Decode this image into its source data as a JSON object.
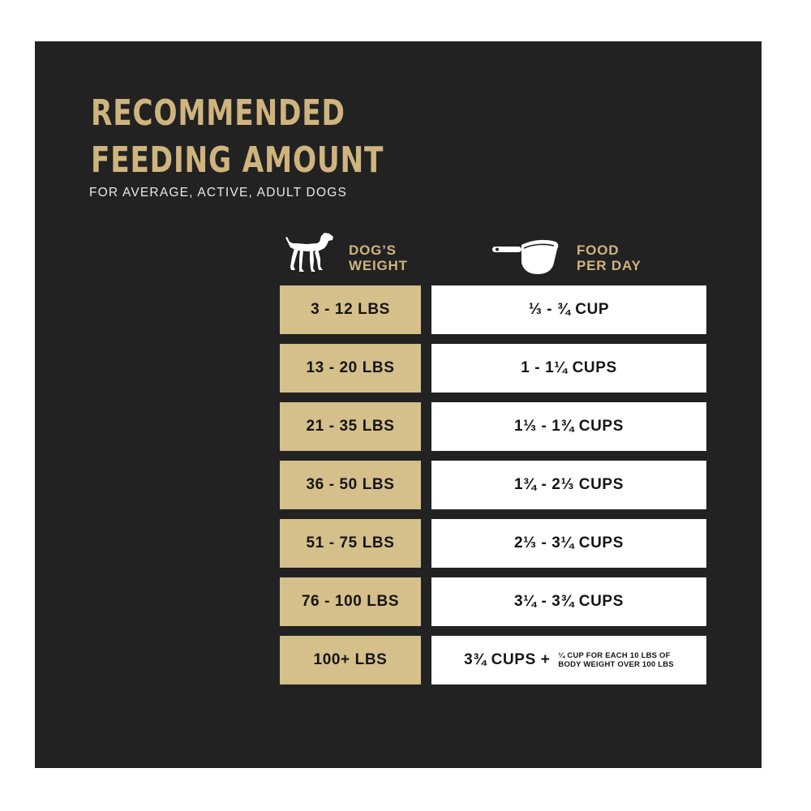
{
  "title": {
    "line1": "RECOMMENDED",
    "line2": "FEEDING AMOUNT"
  },
  "subtitle": "FOR AVERAGE, ACTIVE, ADULT DOGS",
  "columns": {
    "weight_line1": "DOG’S",
    "weight_line2": "WEIGHT",
    "food_line1": "FOOD",
    "food_line2": "PER DAY",
    "weight_icon": "dog-icon",
    "food_icon": "measuring-cup-icon"
  },
  "rows": [
    {
      "weight": "3 - 12 LBS",
      "food": "⅓ - ¾ CUP"
    },
    {
      "weight": "13 - 20 LBS",
      "food": "1 - 1¼ CUPS"
    },
    {
      "weight": "21 - 35 LBS",
      "food": "1⅓ - 1¾ CUPS"
    },
    {
      "weight": "36 - 50 LBS",
      "food": "1¾ - 2⅓ CUPS"
    },
    {
      "weight": "51 - 75 LBS",
      "food": "2⅓ - 3¼ CUPS"
    },
    {
      "weight": "76 - 100 LBS",
      "food": "3¼ - 3¾ CUPS"
    },
    {
      "weight": "100+ LBS",
      "food": "3¾ CUPS +",
      "note_line1": "¼ CUP FOR EACH 10 LBS OF",
      "note_line2": "BODY WEIGHT OVER 100 LBS"
    }
  ],
  "colors": {
    "background": "#222222",
    "accent_gold": "#cfb47e",
    "weight_cell": "#d5bf8a",
    "food_cell": "#ffffff"
  }
}
